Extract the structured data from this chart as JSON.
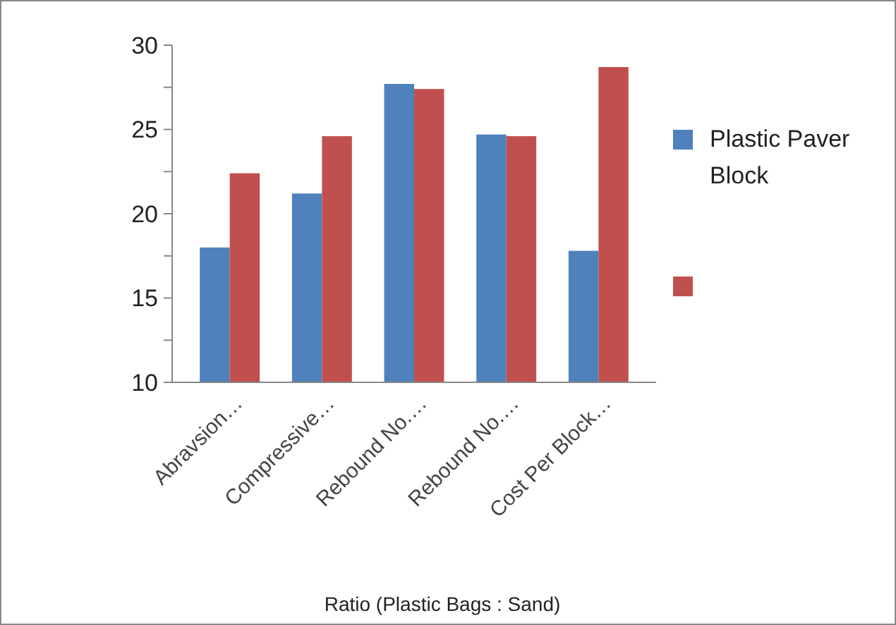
{
  "chart_data": {
    "type": "bar",
    "xlabel": "Ratio (Plastic Bags : Sand)",
    "categories": [
      "Abravsion…",
      "Compressive…",
      "Rebound No.…",
      "Rebound No.…",
      "Cost Per Block…"
    ],
    "series": [
      {
        "name": "Plastic Paver Block",
        "color": "#4f81bd",
        "values": [
          18.0,
          21.2,
          27.7,
          24.7,
          17.8
        ]
      },
      {
        "color": "#c0504d",
        "values": [
          22.4,
          24.6,
          27.4,
          24.6,
          28.7
        ]
      }
    ],
    "ylim": [
      10,
      30
    ],
    "yticks": [
      10,
      {
        "value": 12.5,
        "label": null
      },
      15,
      {
        "value": 17.5,
        "label": null
      },
      20,
      {
        "value": 22.5,
        "label": null
      },
      25,
      {
        "value": 27.5,
        "label": null
      },
      30
    ],
    "legend": "right",
    "grid": false
  }
}
